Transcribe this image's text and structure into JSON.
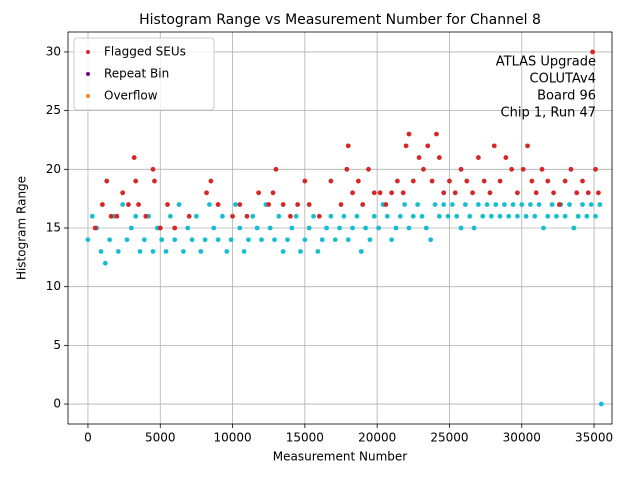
{
  "chart_data": {
    "type": "scatter",
    "title": "Histogram Range vs Measurement Number for Channel 8",
    "x_label": "Measurement Number",
    "y_label": "Histogram Range",
    "annotation": [
      "ATLAS Upgrade",
      "COLUTAv4",
      "Board 96",
      "Chip 1, Run 47"
    ],
    "xlim": [
      -1380,
      36240
    ],
    "ylim": [
      -1.7,
      31.7
    ],
    "xticks": [
      0,
      5000,
      10000,
      15000,
      20000,
      25000,
      30000,
      35000
    ],
    "yticks": [
      0,
      5,
      10,
      15,
      20,
      25,
      30
    ],
    "grid": true,
    "legend": "upper left",
    "series": [
      {
        "color": "#17becf",
        "x": [
          0,
          300,
          600,
          900,
          1200,
          1500,
          1800,
          2100,
          2400,
          2700,
          3000,
          3300,
          3600,
          3900,
          4200,
          4500,
          4800,
          5100,
          5400,
          5700,
          6000,
          6300,
          6600,
          6900,
          7200,
          7500,
          7800,
          8100,
          8400,
          8700,
          9000,
          9300,
          9600,
          9900,
          10200,
          10500,
          10800,
          11100,
          11400,
          11700,
          12000,
          12300,
          12600,
          12900,
          13200,
          13500,
          13800,
          14100,
          14400,
          14700,
          15000,
          15300,
          15600,
          15900,
          16200,
          16500,
          16800,
          17100,
          17400,
          17700,
          18000,
          18300,
          18600,
          18900,
          19200,
          19500,
          19800,
          20100,
          20400,
          20700,
          21000,
          21300,
          21600,
          21900,
          22200,
          22500,
          22800,
          23100,
          23400,
          23700,
          24000,
          24300,
          24600,
          24900,
          25200,
          25500,
          25800,
          26100,
          26400,
          26700,
          27000,
          27300,
          27600,
          27900,
          28200,
          28500,
          28800,
          29100,
          29400,
          29700,
          30000,
          30300,
          30600,
          30900,
          31200,
          31500,
          31800,
          32100,
          32400,
          32700,
          33000,
          33300,
          33600,
          33900,
          34200,
          34500,
          34800,
          35100,
          35400,
          35500
        ],
        "values": [
          14,
          16,
          15,
          13,
          12,
          14,
          16,
          13,
          17,
          14,
          15,
          16,
          13,
          14,
          16,
          13,
          15,
          14,
          13,
          16,
          14,
          17,
          13,
          15,
          14,
          16,
          13,
          14,
          17,
          15,
          14,
          16,
          13,
          14,
          17,
          15,
          13,
          14,
          16,
          15,
          14,
          17,
          15,
          14,
          16,
          13,
          14,
          15,
          16,
          13,
          14,
          15,
          16,
          13,
          14,
          15,
          16,
          14,
          15,
          16,
          14,
          15,
          16,
          13,
          15,
          14,
          16,
          15,
          17,
          16,
          14,
          15,
          16,
          17,
          15,
          16,
          17,
          16,
          15,
          14,
          17,
          16,
          17,
          16,
          17,
          16,
          15,
          17,
          16,
          15,
          17,
          16,
          17,
          16,
          17,
          16,
          17,
          16,
          17,
          16,
          17,
          16,
          17,
          16,
          17,
          15,
          16,
          17,
          16,
          17,
          16,
          17,
          15,
          16,
          17,
          16,
          17,
          16,
          17,
          0
        ]
      },
      {
        "name": "Flagged SEUs",
        "color": "#d62728",
        "x": [
          500,
          1000,
          1300,
          1600,
          2000,
          2400,
          2800,
          3200,
          3300,
          3500,
          4000,
          4500,
          4600,
          5000,
          5500,
          6000,
          7000,
          8200,
          8500,
          9000,
          10000,
          10500,
          11000,
          11800,
          12500,
          12800,
          13000,
          13500,
          14000,
          14500,
          15000,
          15300,
          16000,
          16800,
          17500,
          17900,
          18000,
          18300,
          18700,
          19000,
          19400,
          19800,
          20200,
          20600,
          21000,
          21400,
          21800,
          22000,
          22200,
          22500,
          22900,
          23200,
          23500,
          23800,
          24100,
          24300,
          24600,
          25000,
          25400,
          25800,
          26200,
          26600,
          27000,
          27400,
          27800,
          28100,
          28500,
          28900,
          29300,
          29700,
          30100,
          30400,
          30700,
          31000,
          31400,
          31800,
          32200,
          32600,
          33000,
          33400,
          33800,
          34200,
          34600,
          34900,
          35100,
          35300
        ],
        "values": [
          15,
          17,
          19,
          16,
          16,
          18,
          17,
          21,
          19,
          17,
          16,
          20,
          19,
          15,
          17,
          15,
          16,
          18,
          19,
          17,
          16,
          17,
          16,
          18,
          17,
          18,
          20,
          17,
          16,
          17,
          19,
          17,
          16,
          19,
          17,
          20,
          22,
          18,
          19,
          17,
          20,
          18,
          18,
          17,
          18,
          19,
          18,
          22,
          23,
          19,
          21,
          20,
          22,
          19,
          23,
          21,
          18,
          19,
          18,
          20,
          19,
          18,
          21,
          19,
          18,
          22,
          19,
          21,
          20,
          18,
          20,
          22,
          19,
          18,
          20,
          19,
          18,
          17,
          19,
          20,
          18,
          19,
          18,
          30,
          20,
          18
        ]
      },
      {
        "name": "Repeat Bin",
        "color": "#800080",
        "x": [],
        "values": []
      },
      {
        "name": "Overflow",
        "color": "#ff7f0e",
        "x": [],
        "values": []
      }
    ]
  }
}
